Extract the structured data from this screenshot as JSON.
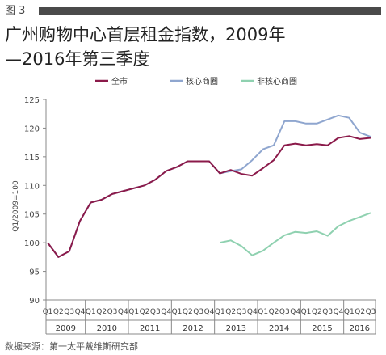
{
  "figure_label": "图 3",
  "title_line1": "广州购物中心首层租金指数，2009年",
  "title_line2": "—2016年第三季度",
  "source": "数据来源：第一太平戴维斯研究部",
  "chart_data": {
    "type": "line",
    "ylabel": "Q1/2009=100",
    "xlabel": "",
    "ylim": [
      90,
      125
    ],
    "yticks": [
      90,
      95,
      100,
      105,
      110,
      115,
      120,
      125
    ],
    "grid": false,
    "legend_position": "top",
    "categories": [
      "Q1",
      "Q2",
      "Q3",
      "Q4",
      "Q1",
      "Q2",
      "Q3",
      "Q4",
      "Q1",
      "Q2",
      "Q3",
      "Q4",
      "Q1",
      "Q2",
      "Q3",
      "Q4",
      "Q1",
      "Q2",
      "Q3",
      "Q4",
      "Q1",
      "Q2",
      "Q3",
      "Q4",
      "Q1",
      "Q2",
      "Q3",
      "Q4",
      "Q1",
      "Q2",
      "Q3"
    ],
    "years": [
      "2009",
      "2010",
      "2011",
      "2012",
      "2013",
      "2014",
      "2015",
      "2016"
    ],
    "series": [
      {
        "name": "全市",
        "color": "#8b1a4a",
        "values": [
          100,
          97.5,
          98.5,
          103.8,
          107,
          107.5,
          108.5,
          109,
          109.5,
          110,
          111,
          112.5,
          113.2,
          114.2,
          114.2,
          114.2,
          112.1,
          112.7,
          112,
          111.7,
          113,
          114.4,
          117,
          117.3,
          117,
          117.2,
          117,
          118.3,
          118.6,
          118.1,
          118.3
        ]
      },
      {
        "name": "核心商圈",
        "color": "#8fa6cf",
        "values": [
          100,
          97.5,
          98.5,
          103.8,
          107,
          107.5,
          108.5,
          109,
          109.5,
          110,
          111,
          112.5,
          113.2,
          114.2,
          114.2,
          114.2,
          112.1,
          112.5,
          112.8,
          114.4,
          116.3,
          117,
          121.2,
          121.2,
          120.8,
          120.8,
          121.5,
          122.2,
          121.8,
          119.2,
          118.5
        ]
      },
      {
        "name": "非核心商圈",
        "color": "#8fd1b0",
        "values": [
          null,
          null,
          null,
          null,
          null,
          null,
          null,
          null,
          null,
          null,
          null,
          null,
          null,
          null,
          null,
          null,
          100,
          100.4,
          99.4,
          97.8,
          98.6,
          100,
          101.3,
          101.9,
          101.7,
          102,
          101.2,
          102.9,
          103.8,
          104.5,
          105.2
        ]
      }
    ]
  }
}
